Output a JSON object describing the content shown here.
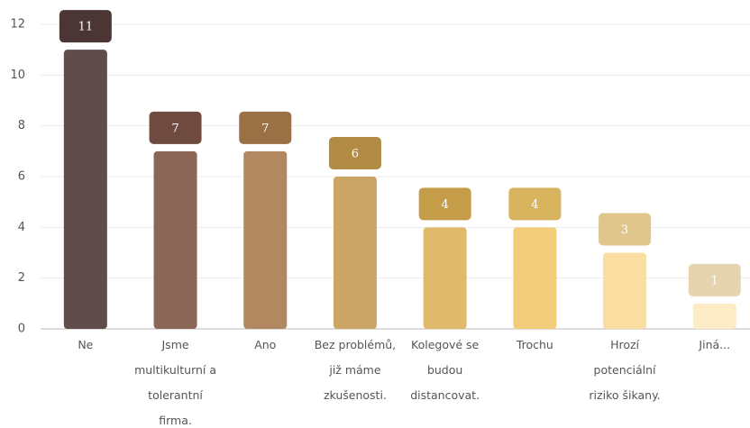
{
  "chart_data": {
    "type": "bar",
    "categories": [
      "Ne",
      "Jsme multikulturní a tolerantní firma.",
      "Ano",
      "Bez problémů, již máme zkušenosti.",
      "Kolegové se budou distancovat.",
      "Trochu",
      "Hrozí potenciální riziko šikany.",
      "Jiná..."
    ],
    "values": [
      11,
      7,
      7,
      6,
      4,
      4,
      3,
      1
    ],
    "colors": [
      "#5f4c4b",
      "#8c6657",
      "#b18860",
      "#caa566",
      "#e0b96a",
      "#f1cd79",
      "#f9dda1",
      "#fdecc6"
    ],
    "label_colors": [
      "#4b3535",
      "#6f4a3e",
      "#9a7045",
      "#b28b45",
      "#c59c48",
      "#d8b45f",
      "#e0c58c",
      "#e5d4ae"
    ],
    "ylim": [
      0,
      12
    ],
    "yticks": [
      0,
      2,
      4,
      6,
      8,
      10,
      12
    ],
    "grid": true
  }
}
